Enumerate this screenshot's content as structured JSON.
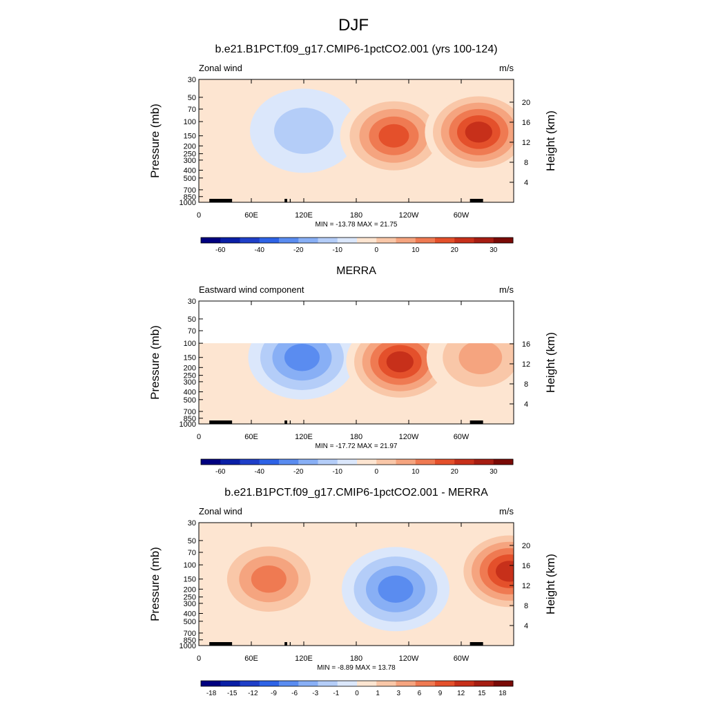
{
  "figure_title": "DJF",
  "chart_data": [
    {
      "type": "heatmap",
      "title": "b.e21.B1PCT.f09_g17.CMIP6-1pctCO2.001 (yrs 100-124)",
      "left_label": "Zonal wind",
      "units": "m/s",
      "ylabel": "Pressure (mb)",
      "y2label": "Height (km)",
      "pressure_ticks": [
        "30",
        "50",
        "70",
        "100",
        "150",
        "200",
        "250",
        "300",
        "400",
        "500",
        "700",
        "850",
        "1000"
      ],
      "height_ticks": [
        "20",
        "16",
        "12",
        "8",
        "4"
      ],
      "lon_ticks": [
        "0",
        "60E",
        "120E",
        "180",
        "120W",
        "60W"
      ],
      "minmax": "MIN = -13.78  MAX =  21.75",
      "data_top_pressure": 30,
      "masked": false,
      "colorbar_labels": [
        "-60",
        "-40",
        "-20",
        "-10",
        "0",
        "10",
        "20",
        "30"
      ],
      "features": [
        {
          "lon": 120,
          "p": 130,
          "value": -7
        },
        {
          "lon": 223,
          "p": 150,
          "value": 21
        },
        {
          "lon": 320,
          "p": 135,
          "value": 22
        }
      ]
    },
    {
      "type": "heatmap",
      "title": "MERRA",
      "left_label": "Eastward wind component",
      "units": "m/s",
      "ylabel": "Pressure (mb)",
      "y2label": "Height (km)",
      "pressure_ticks": [
        "30",
        "50",
        "70",
        "100",
        "150",
        "200",
        "250",
        "300",
        "400",
        "500",
        "700",
        "850",
        "1000"
      ],
      "height_ticks": [
        "16",
        "12",
        "8",
        "4"
      ],
      "lon_ticks": [
        "0",
        "60E",
        "120E",
        "180",
        "120W",
        "60W"
      ],
      "minmax": "MIN = -17.72  MAX =  21.97",
      "data_top_pressure": 100,
      "masked": false,
      "colorbar_labels": [
        "-60",
        "-40",
        "-20",
        "-10",
        "0",
        "10",
        "20",
        "30"
      ],
      "features": [
        {
          "lon": 118,
          "p": 150,
          "value": -15
        },
        {
          "lon": 230,
          "p": 170,
          "value": 22
        },
        {
          "lon": 322,
          "p": 150,
          "value": 12
        }
      ]
    },
    {
      "type": "heatmap",
      "title": "b.e21.B1PCT.f09_g17.CMIP6-1pctCO2.001 - MERRA",
      "left_label": "Zonal wind",
      "units": "m/s",
      "ylabel": "Pressure (mb)",
      "y2label": "Height (km)",
      "pressure_ticks": [
        "30",
        "50",
        "70",
        "100",
        "150",
        "200",
        "250",
        "300",
        "400",
        "500",
        "700",
        "850",
        "1000"
      ],
      "height_ticks": [
        "20",
        "16",
        "12",
        "8",
        "4"
      ],
      "lon_ticks": [
        "0",
        "60E",
        "120E",
        "180",
        "120W",
        "60W"
      ],
      "minmax": "MIN = -8.89  MAX =  13.78",
      "data_top_pressure": 30,
      "masked": true,
      "colorbar_labels": [
        "-18",
        "-15",
        "-12",
        "-9",
        "-6",
        "-3",
        "-1",
        "0",
        "1",
        "3",
        "6",
        "9",
        "12",
        "15",
        "18"
      ],
      "features": [
        {
          "lon": 225,
          "p": 200,
          "value": -9
        },
        {
          "lon": 355,
          "p": 120,
          "value": 13
        },
        {
          "lon": 80,
          "p": 150,
          "value": 8
        }
      ]
    }
  ],
  "colors": {
    "diverging": [
      "#00007f",
      "#0a1fa6",
      "#1f3fc8",
      "#2e63e6",
      "#5a8cf0",
      "#88aff5",
      "#b4cdf8",
      "#dbe7fb",
      "#fde5d1",
      "#f9c7a8",
      "#f5a47f",
      "#ef7a52",
      "#e4502b",
      "#c7301a",
      "#a61d12",
      "#7a0a06"
    ],
    "mask": "#000000",
    "topography": "#000000"
  }
}
